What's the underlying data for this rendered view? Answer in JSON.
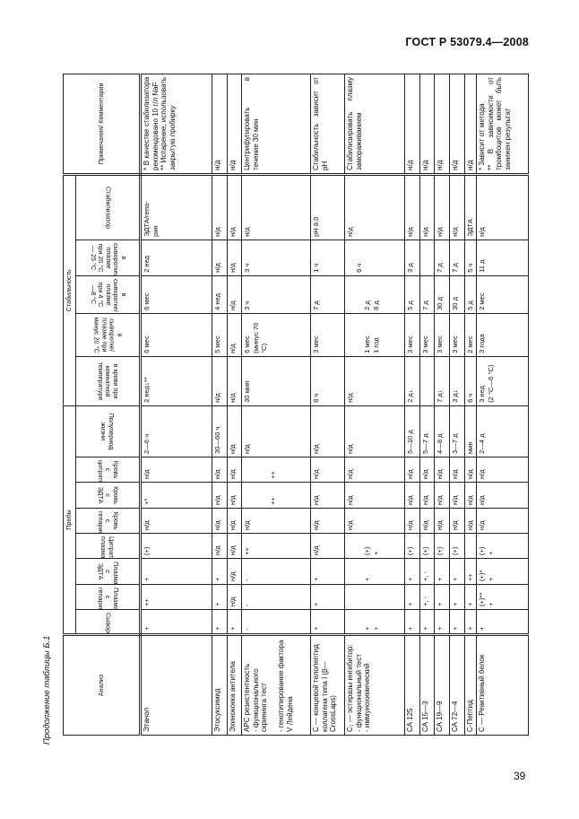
{
  "header": {
    "doc_code": "ГОСТ Р 53079.4—2008"
  },
  "caption": "Продолжение таблицы Б.1",
  "page_number": "39",
  "table": {
    "col_analyte": "Анализ",
    "group_samples": "Пробы",
    "group_stability": "Стабильность",
    "col_notes": "Примечания/ Комментарии",
    "sub_headers": [
      "Сыворотка",
      "Плазма с гепарином",
      "Плазма с ЭДТА",
      "Цитратная плазма",
      "Кровь с гепарином",
      "Кровь с ЭДТА",
      "Кровь с цитратом",
      "Полупериод жизни",
      "в крови при комнатной температуре",
      "в сыворотке/ плазме при минус 20 °C",
      "в сыворотке/ плазме при 4 °C—8 °C",
      "в сыворотке/ плазме при 20 °C — 25 °C",
      "Стабилизатор"
    ],
    "rows": [
      {
        "cells": [
          "Этанол",
          "+",
          "++",
          "+",
          "(+)",
          "н/д",
          "+*",
          "н/д",
          "2—6 ч",
          "2 нед↓**",
          "6 мес",
          "6 мес",
          "2 нед",
          "ЭДТА/гепа-\nрин",
          "* В качестве стабилизатора рекомендовано 10 г/л NaF\n** Испарение, использовать закрытую пробирку"
        ]
      },
      {
        "cells": [
          "Этосуксимид",
          "+",
          "+",
          "+",
          "н/д",
          "н/д",
          "н/д",
          "н/д",
          "30—60 ч",
          "н/д",
          "5 мес",
          "4 нед",
          "н/д",
          "н/д",
          "н/д"
        ]
      },
      {
        "cells": [
          "Эхинококка антитела",
          "+",
          "н/д",
          "н/д",
          "н/д",
          "н/д",
          "н/д",
          "н/д",
          "н/д",
          "н/д",
          "н/д",
          "н/д",
          "н/д",
          "н/д",
          "н/д"
        ]
      },
      {
        "cells": [
          "АРС резистентность\n- функционального скрининга тест\n\n- генотипирование фактора V Лейдена",
          "-",
          "-",
          "-",
          "++",
          "н/д",
          "\n\n\n++",
          "\n\n\n++",
          "н/д",
          "30 мин",
          "6 мес (минус 70 °C)",
          "3 ч",
          "3 ч",
          "н/д",
          "Центрифугировать в течение 30 мин"
        ]
      },
      {
        "cells": [
          "С — концевой телопептид коллагена типа I (β— CrossLaps)",
          "+",
          "+",
          "+",
          "н/д",
          "н/д",
          "н/д",
          "н/д",
          "н/д",
          "8 ч",
          "3 мес",
          "7 д",
          "1 ч",
          "pH 8,0",
          "Стабильность зависит от pH"
        ]
      },
      {
        "cells": [
          "C₁ — эстеразы ингибитор:\n- функциональный тест\n- иммунохимический",
          "\n\n+\n+",
          "",
          "\n\n+",
          "\n\n(+)\n+",
          "н/д",
          "н/д",
          "н/д",
          "н/д",
          "н/д",
          "\n\n1 мес\n1 год",
          "\n\n2 д\n8 д",
          "\n6 ч",
          "н/д",
          "Стабилизировать плазму замораживанием"
        ]
      },
      {
        "cells": [
          "СА 125",
          "+",
          "+",
          "+",
          "(+)",
          "н/д",
          "н/д",
          "н/д",
          "5—10 д",
          "2 д↓",
          "3 мес",
          "5 д",
          "3 д",
          "н/д",
          "н/д"
        ]
      },
      {
        "cells": [
          "СА 15—3",
          "+",
          "+, -",
          "+, -",
          "(+)",
          "н/д",
          "н/д",
          "н/д",
          "5—7 д",
          "",
          "3 мес",
          "7 д",
          "",
          "н/д",
          "н/д"
        ]
      },
      {
        "cells": [
          "СА 19—9",
          "+",
          "+",
          "+",
          "(+)",
          "н/д",
          "н/д",
          "н/д",
          "4—8 д",
          "7 д↓",
          "3 мес",
          "30 д",
          "7 д",
          "н/д",
          "н/д"
        ]
      },
      {
        "cells": [
          "СА 72—4",
          "+",
          "+",
          "+",
          "(+)",
          "н/д",
          "н/д",
          "н/д",
          "3—7 д",
          "3 д↓",
          "3 мес",
          "30 д",
          "7 д",
          "н/д",
          "н/д"
        ]
      },
      {
        "cells": [
          "С-Пептид",
          "+",
          "+",
          "++",
          "",
          "н/д",
          "н/д",
          "н/д",
          "мин",
          "6 ч",
          "2 мес",
          "5 д",
          "5 ч",
          "ЭДТА",
          "н/д"
        ]
      },
      {
        "cells": [
          "С — Реактивный белок",
          "+",
          "(+)**\n+",
          "(+)*\n+",
          "(+)\n+",
          "н/д",
          "н/д",
          "н/д",
          "2—4 д",
          "3 нед\n(2 °C—6 °C)",
          "3 года",
          "2 мес",
          "11 д",
          "н/д",
          "* Зависит от метода\n** В зависимости от тромбоцитов может быть занижен результат"
        ]
      }
    ]
  }
}
